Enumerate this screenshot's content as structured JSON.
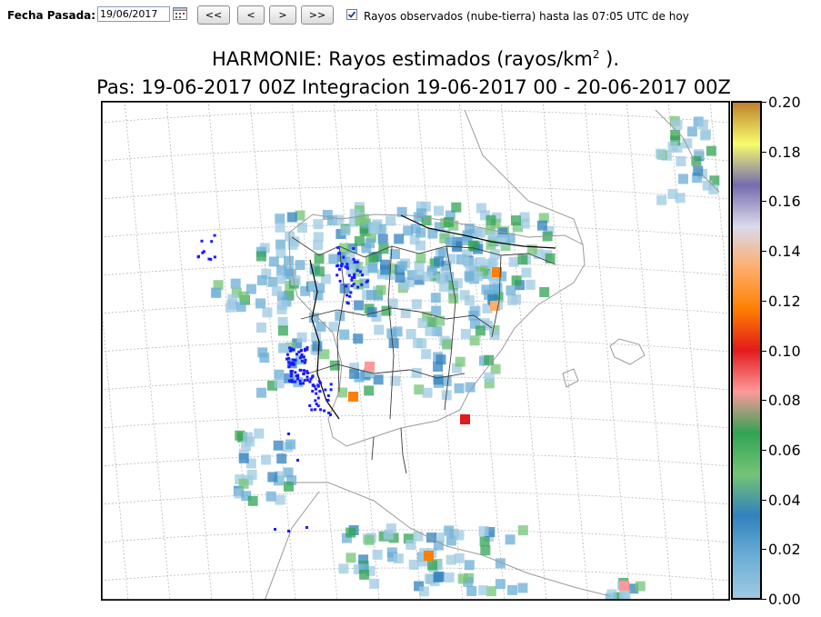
{
  "toolbar": {
    "date_label": "Fecha Pasada:",
    "date_value": "19/06/2017",
    "btn_first": "<<",
    "btn_prev": "<",
    "btn_next": ">",
    "btn_last": ">>",
    "observed_checked": true,
    "observed_label": "Rayos observados (nube-tierra) hasta las 07:05 UTC de hoy"
  },
  "figure": {
    "title_main": "HARMONIE: Rayos estimados  (rayos/km",
    "title_sup": "2",
    "title_end": " ).",
    "subtitle": "Pas: 19-06-2017 00Z Integracion 19-06-2017 00 - 20-06-2017 00Z"
  },
  "colorbar": {
    "ticks": [
      "0.20",
      "0.18",
      "0.16",
      "0.14",
      "0.12",
      "0.10",
      "0.08",
      "0.06",
      "0.04",
      "0.02",
      "0.00"
    ],
    "colors": [
      "#9ecae1",
      "#6baed6",
      "#3182bd",
      "#74c476",
      "#31a354",
      "#ff9999",
      "#e31a1c",
      "#ff7f00",
      "#fdae6b",
      "#dadaeb",
      "#756bb1",
      "#f7fc6b",
      "#bf812d"
    ]
  }
}
